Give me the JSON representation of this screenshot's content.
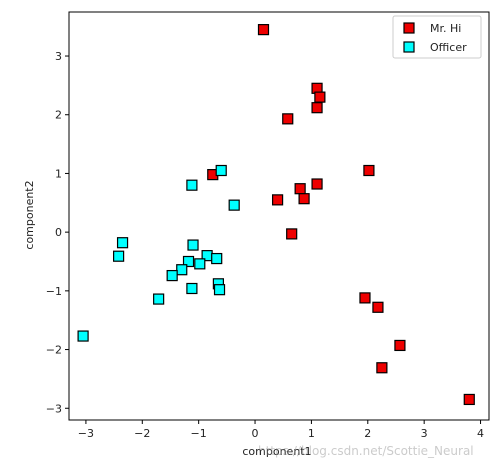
{
  "chart_data": {
    "type": "scatter",
    "xlabel": "component1",
    "ylabel": "component2",
    "xlim": [
      -3.3,
      4.15
    ],
    "ylim": [
      -3.2,
      3.75
    ],
    "xticks": [
      -3,
      -2,
      -1,
      0,
      1,
      2,
      3,
      4
    ],
    "yticks": [
      -3,
      -2,
      -1,
      0,
      1,
      2,
      3
    ],
    "grid": false,
    "legend_position": "top-right",
    "marker": "square",
    "series": [
      {
        "name": "Mr. Hi",
        "color": "#ee0000",
        "points": [
          {
            "x": 0.15,
            "y": 3.45
          },
          {
            "x": 1.1,
            "y": 2.45
          },
          {
            "x": 1.15,
            "y": 2.3
          },
          {
            "x": 1.1,
            "y": 2.12
          },
          {
            "x": 0.58,
            "y": 1.93
          },
          {
            "x": 2.02,
            "y": 1.05
          },
          {
            "x": 1.1,
            "y": 0.82
          },
          {
            "x": 0.8,
            "y": 0.74
          },
          {
            "x": 0.87,
            "y": 0.57
          },
          {
            "x": 0.4,
            "y": 0.55
          },
          {
            "x": -0.75,
            "y": 0.98
          },
          {
            "x": 0.65,
            "y": -0.03
          },
          {
            "x": 1.95,
            "y": -1.12
          },
          {
            "x": 2.18,
            "y": -1.28
          },
          {
            "x": 2.57,
            "y": -1.93
          },
          {
            "x": 2.25,
            "y": -2.31
          },
          {
            "x": 3.8,
            "y": -2.85
          }
        ]
      },
      {
        "name": "Officer",
        "color": "#00ffff",
        "points": [
          {
            "x": -0.6,
            "y": 1.05
          },
          {
            "x": -1.12,
            "y": 0.8
          },
          {
            "x": -0.37,
            "y": 0.46
          },
          {
            "x": -2.35,
            "y": -0.18
          },
          {
            "x": -2.42,
            "y": -0.41
          },
          {
            "x": -1.1,
            "y": -0.22
          },
          {
            "x": -0.85,
            "y": -0.4
          },
          {
            "x": -0.68,
            "y": -0.45
          },
          {
            "x": -1.18,
            "y": -0.5
          },
          {
            "x": -0.98,
            "y": -0.54
          },
          {
            "x": -1.3,
            "y": -0.64
          },
          {
            "x": -1.47,
            "y": -0.74
          },
          {
            "x": -0.65,
            "y": -0.88
          },
          {
            "x": -0.63,
            "y": -0.98
          },
          {
            "x": -1.12,
            "y": -0.96
          },
          {
            "x": -1.71,
            "y": -1.14
          },
          {
            "x": -3.05,
            "y": -1.77
          }
        ]
      }
    ]
  },
  "watermark": "https://blog.csdn.net/Scottie_Neural"
}
